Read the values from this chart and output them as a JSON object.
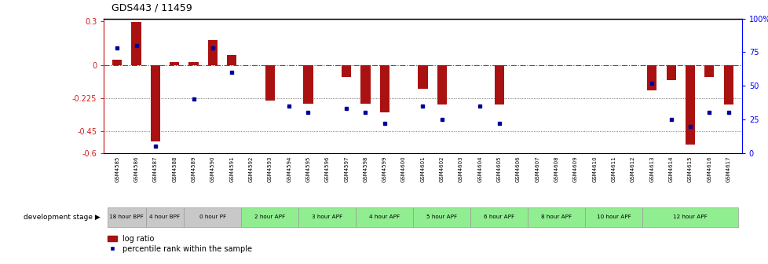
{
  "title": "GDS443 / 11459",
  "samples": [
    "GSM4585",
    "GSM4586",
    "GSM4587",
    "GSM4588",
    "GSM4589",
    "GSM4590",
    "GSM4591",
    "GSM4592",
    "GSM4593",
    "GSM4594",
    "GSM4595",
    "GSM4596",
    "GSM4597",
    "GSM4598",
    "GSM4599",
    "GSM4600",
    "GSM4601",
    "GSM4602",
    "GSM4603",
    "GSM4604",
    "GSM4605",
    "GSM4606",
    "GSM4607",
    "GSM4608",
    "GSM4609",
    "GSM4610",
    "GSM4611",
    "GSM4612",
    "GSM4613",
    "GSM4614",
    "GSM4615",
    "GSM4616",
    "GSM4617"
  ],
  "log_ratio": [
    0.04,
    0.295,
    -0.52,
    0.02,
    0.02,
    0.175,
    0.07,
    0.0,
    -0.24,
    0.0,
    -0.265,
    0.0,
    -0.08,
    -0.26,
    -0.32,
    0.0,
    -0.16,
    -0.27,
    0.0,
    0.0,
    -0.27,
    0.0,
    0.0,
    0.0,
    0.0,
    0.0,
    0.0,
    0.0,
    -0.17,
    -0.1,
    -0.54,
    -0.08,
    -0.27
  ],
  "percentile_rank": [
    78,
    80,
    5,
    null,
    40,
    78,
    60,
    null,
    null,
    35,
    30,
    null,
    33,
    30,
    22,
    null,
    35,
    25,
    null,
    35,
    22,
    null,
    null,
    null,
    null,
    null,
    null,
    null,
    52,
    25,
    20,
    30,
    30
  ],
  "stage_groups": [
    {
      "label": "18 hour BPF",
      "start": 0,
      "end": 2,
      "color": "#c8c8c8"
    },
    {
      "label": "4 hour BPF",
      "start": 2,
      "end": 4,
      "color": "#c8c8c8"
    },
    {
      "label": "0 hour PF",
      "start": 4,
      "end": 7,
      "color": "#c8c8c8"
    },
    {
      "label": "2 hour APF",
      "start": 7,
      "end": 10,
      "color": "#90ee90"
    },
    {
      "label": "3 hour APF",
      "start": 10,
      "end": 13,
      "color": "#90ee90"
    },
    {
      "label": "4 hour APF",
      "start": 13,
      "end": 16,
      "color": "#90ee90"
    },
    {
      "label": "5 hour APF",
      "start": 16,
      "end": 19,
      "color": "#90ee90"
    },
    {
      "label": "6 hour APF",
      "start": 19,
      "end": 22,
      "color": "#90ee90"
    },
    {
      "label": "8 hour APF",
      "start": 22,
      "end": 25,
      "color": "#90ee90"
    },
    {
      "label": "10 hour APF",
      "start": 25,
      "end": 28,
      "color": "#90ee90"
    },
    {
      "label": "12 hour APF",
      "start": 28,
      "end": 33,
      "color": "#90ee90"
    }
  ],
  "ylim_left": [
    -0.6,
    0.32
  ],
  "ylim_right": [
    0,
    100
  ],
  "yticks_left": [
    -0.6,
    -0.45,
    -0.225,
    0.0,
    0.3
  ],
  "ytick_labels_left": [
    "-0.6",
    "-0.45",
    "-0.225",
    "0",
    "0.3"
  ],
  "yticks_right": [
    0,
    25,
    50,
    75,
    100
  ],
  "ytick_labels_right": [
    "0",
    "25",
    "50",
    "75",
    "100%"
  ],
  "bar_color": "#aa1111",
  "point_color": "#000099",
  "hline_zero_color": "#cc2222",
  "hline_dotted_color": "#555555",
  "legend_log": "log ratio",
  "legend_pct": "percentile rank within the sample",
  "fig_width": 9.79,
  "fig_height": 3.36
}
